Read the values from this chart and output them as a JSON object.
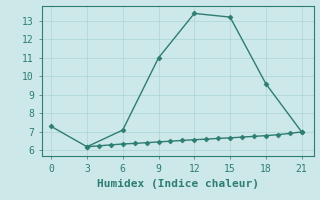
{
  "xlabel": "Humidex (Indice chaleur)",
  "bg_color": "#cce8e8",
  "line_color": "#2e7d72",
  "grid_color": "#b0d8d8",
  "ylim": [
    5.7,
    13.8
  ],
  "xlim": [
    -0.8,
    22.0
  ],
  "xticks": [
    0,
    3,
    6,
    9,
    12,
    15,
    18,
    21
  ],
  "yticks": [
    6,
    7,
    8,
    9,
    10,
    11,
    12,
    13
  ],
  "curve1_x": [
    0,
    3,
    6,
    9,
    12,
    15,
    18,
    21
  ],
  "curve1_y": [
    7.3,
    6.2,
    7.1,
    11.0,
    13.4,
    13.2,
    9.6,
    7.0
  ],
  "curve2_x": [
    3,
    4,
    5,
    6,
    7,
    8,
    9,
    10,
    11,
    12,
    13,
    14,
    15,
    16,
    17,
    18,
    19,
    20,
    21
  ],
  "curve2_y": [
    6.2,
    6.25,
    6.3,
    6.35,
    6.38,
    6.42,
    6.46,
    6.5,
    6.54,
    6.58,
    6.61,
    6.65,
    6.68,
    6.72,
    6.76,
    6.8,
    6.85,
    6.92,
    7.0
  ],
  "marker": "D",
  "markersize": 2.5,
  "linewidth": 1.0,
  "font_family": "monospace",
  "xlabel_fontsize": 8,
  "tick_fontsize": 7
}
